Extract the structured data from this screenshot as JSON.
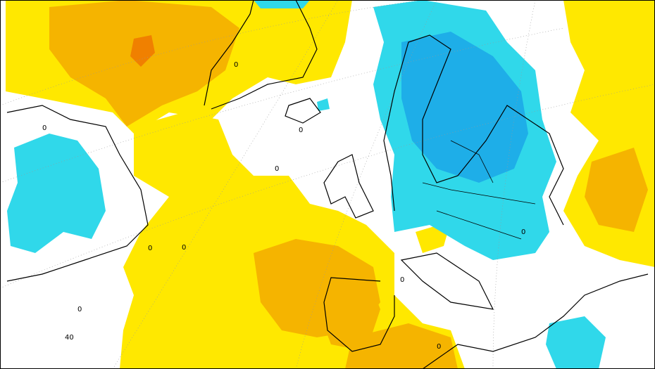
{
  "map": {
    "contour_labels": [
      "0",
      "0",
      "0",
      "0",
      "0",
      "0",
      "0",
      "0",
      "0",
      "0",
      "40"
    ]
  }
}
